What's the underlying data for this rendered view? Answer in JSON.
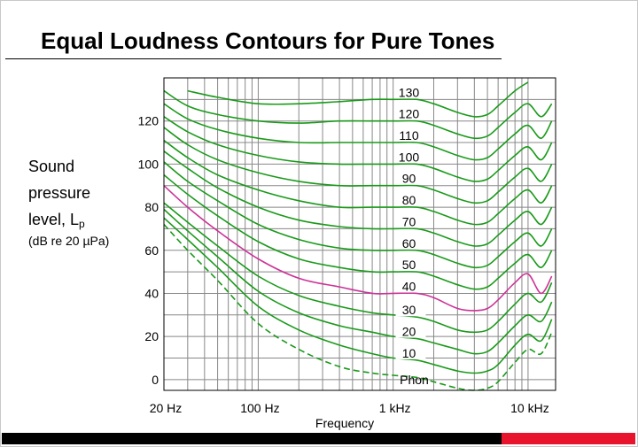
{
  "slide": {
    "title": "Equal Loudness Contours for Pure Tones"
  },
  "y_label": {
    "line1": "Sound",
    "line2": "pressure",
    "line3": "level, L",
    "line3_sub": "p",
    "unit": "(dB re 20 µPa)"
  },
  "colors": {
    "contour": "#1a9a1a",
    "highlight": "#cc3399",
    "grid": "#888888",
    "bar_black": "#000000",
    "bar_red": "#e8142e"
  },
  "chart_data": {
    "type": "line",
    "title": "Equal Loudness Contours for Pure Tones",
    "xlabel": "Frequency",
    "ylabel": "Sound pressure level, Lp (dB re 20 µPa)",
    "x_scale": "log",
    "xlim": [
      20,
      16000
    ],
    "ylim": [
      -5,
      140
    ],
    "x_ticks": [
      {
        "value": 20,
        "label": "20 Hz"
      },
      {
        "value": 100,
        "label": "100 Hz"
      },
      {
        "value": 1000,
        "label": "1 kHz"
      },
      {
        "value": 10000,
        "label": "10 kHz"
      }
    ],
    "y_ticks": [
      0,
      20,
      40,
      60,
      80,
      100,
      120
    ],
    "y_tick_labels": [
      "0",
      "20",
      "40",
      "60",
      "80",
      "100",
      "120"
    ],
    "phon_axis_label": "Phon",
    "highlighted_phon": 40,
    "threshold_phon": 0,
    "x": [
      20,
      30,
      50,
      100,
      200,
      400,
      700,
      1000,
      1500,
      2000,
      3000,
      4000,
      5000,
      6000,
      8000,
      10000,
      12500,
      15000
    ],
    "series": [
      {
        "name": "0",
        "label": "",
        "values": [
          72,
          60,
          46,
          26,
          14,
          6,
          3,
          2,
          1,
          -1,
          -4,
          -5,
          -4,
          -1,
          8,
          14,
          12,
          22
        ]
      },
      {
        "name": "10",
        "label": "10",
        "values": [
          75,
          65,
          52,
          34,
          23,
          16,
          12,
          10,
          9,
          7,
          4,
          3,
          4,
          7,
          16,
          21,
          18,
          28
        ]
      },
      {
        "name": "20",
        "label": "20",
        "values": [
          79,
          69,
          57,
          41,
          31,
          25,
          22,
          20,
          19,
          17,
          14,
          12,
          13,
          17,
          25,
          30,
          27,
          36
        ]
      },
      {
        "name": "30",
        "label": "30",
        "values": [
          82,
          73,
          62,
          48,
          39,
          34,
          31,
          30,
          29,
          27,
          23,
          22,
          23,
          27,
          35,
          40,
          36,
          45
        ]
      },
      {
        "name": "40",
        "label": "40",
        "values": [
          90,
          80,
          69,
          56,
          47,
          43,
          40,
          40,
          40,
          38,
          33,
          32,
          33,
          37,
          45,
          49,
          40,
          48
        ]
      },
      {
        "name": "50",
        "label": "50",
        "values": [
          95,
          86,
          76,
          64,
          56,
          52,
          50,
          50,
          50,
          48,
          44,
          42,
          43,
          47,
          54,
          58,
          52,
          60
        ]
      },
      {
        "name": "60",
        "label": "60",
        "values": [
          101,
          92,
          83,
          72,
          65,
          61,
          60,
          60,
          60,
          58,
          54,
          52,
          53,
          57,
          64,
          68,
          62,
          70
        ]
      },
      {
        "name": "70",
        "label": "70",
        "values": [
          106,
          98,
          89,
          80,
          74,
          71,
          70,
          70,
          70,
          68,
          64,
          62,
          63,
          67,
          74,
          78,
          72,
          80
        ]
      },
      {
        "name": "80",
        "label": "80",
        "values": [
          111,
          103,
          95,
          88,
          83,
          80,
          80,
          80,
          80,
          78,
          74,
          72,
          73,
          77,
          84,
          88,
          82,
          90
        ]
      },
      {
        "name": "90",
        "label": "90",
        "values": [
          117,
          109,
          102,
          96,
          92,
          90,
          90,
          90,
          90,
          88,
          84,
          82,
          83,
          87,
          94,
          98,
          92,
          100
        ]
      },
      {
        "name": "100",
        "label": "100",
        "values": [
          122,
          115,
          109,
          104,
          101,
          100,
          100,
          100,
          100,
          98,
          94,
          92,
          93,
          97,
          104,
          108,
          102,
          110
        ]
      },
      {
        "name": "110",
        "label": "110",
        "values": [
          128,
          121,
          116,
          112,
          110,
          110,
          110,
          110,
          110,
          108,
          104,
          102,
          103,
          107,
          114,
          118,
          112,
          120
        ]
      },
      {
        "name": "120",
        "label": "120",
        "values": [
          134,
          127,
          123,
          120,
          119,
          120,
          120,
          120,
          120,
          118,
          114,
          112,
          113,
          117,
          124,
          128,
          122,
          128
        ]
      },
      {
        "name": "130",
        "label": "130",
        "values": [
          null,
          134,
          131,
          128,
          128,
          129,
          130,
          130,
          130,
          128,
          124,
          122,
          123,
          127,
          134,
          138,
          null,
          null
        ]
      }
    ]
  }
}
